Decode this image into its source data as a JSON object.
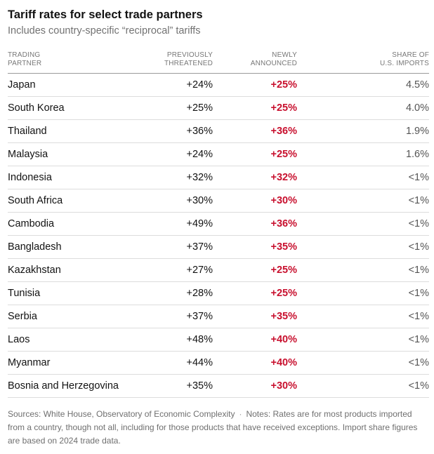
{
  "chart_data": {
    "type": "table",
    "title": "Tariff rates for select trade partners",
    "subtitle": "Includes country-specific “reciprocal” tariffs",
    "columns": {
      "partner": [
        "TRADING",
        "PARTNER"
      ],
      "previous": [
        "PREVIOUSLY",
        "THREATENED"
      ],
      "new": [
        "NEWLY",
        "ANNOUNCED"
      ],
      "share": [
        "SHARE OF",
        "U.S. IMPORTS"
      ]
    },
    "rows": [
      {
        "partner": "Japan",
        "previous": "+24%",
        "new": "+25%",
        "share": "4.5%"
      },
      {
        "partner": "South Korea",
        "previous": "+25%",
        "new": "+25%",
        "share": "4.0%"
      },
      {
        "partner": "Thailand",
        "previous": "+36%",
        "new": "+36%",
        "share": "1.9%"
      },
      {
        "partner": "Malaysia",
        "previous": "+24%",
        "new": "+25%",
        "share": "1.6%"
      },
      {
        "partner": "Indonesia",
        "previous": "+32%",
        "new": "+32%",
        "share": "<1%"
      },
      {
        "partner": "South Africa",
        "previous": "+30%",
        "new": "+30%",
        "share": "<1%"
      },
      {
        "partner": "Cambodia",
        "previous": "+49%",
        "new": "+36%",
        "share": "<1%"
      },
      {
        "partner": "Bangladesh",
        "previous": "+37%",
        "new": "+35%",
        "share": "<1%"
      },
      {
        "partner": "Kazakhstan",
        "previous": "+27%",
        "new": "+25%",
        "share": "<1%"
      },
      {
        "partner": "Tunisia",
        "previous": "+28%",
        "new": "+25%",
        "share": "<1%"
      },
      {
        "partner": "Serbia",
        "previous": "+37%",
        "new": "+35%",
        "share": "<1%"
      },
      {
        "partner": "Laos",
        "previous": "+48%",
        "new": "+40%",
        "share": "<1%"
      },
      {
        "partner": "Myanmar",
        "previous": "+44%",
        "new": "+40%",
        "share": "<1%"
      },
      {
        "partner": "Bosnia and Herzegovina",
        "previous": "+35%",
        "new": "+30%",
        "share": "<1%"
      }
    ],
    "highlight_color": "#c8102e"
  },
  "footer": {
    "sources": "Sources: White House, Observatory of Economic Complexity",
    "separator": "·",
    "notes": "Notes: Rates are for most products imported from a country, though not all, including for those products that have received exceptions. Import share figures are based on 2024 trade data."
  }
}
